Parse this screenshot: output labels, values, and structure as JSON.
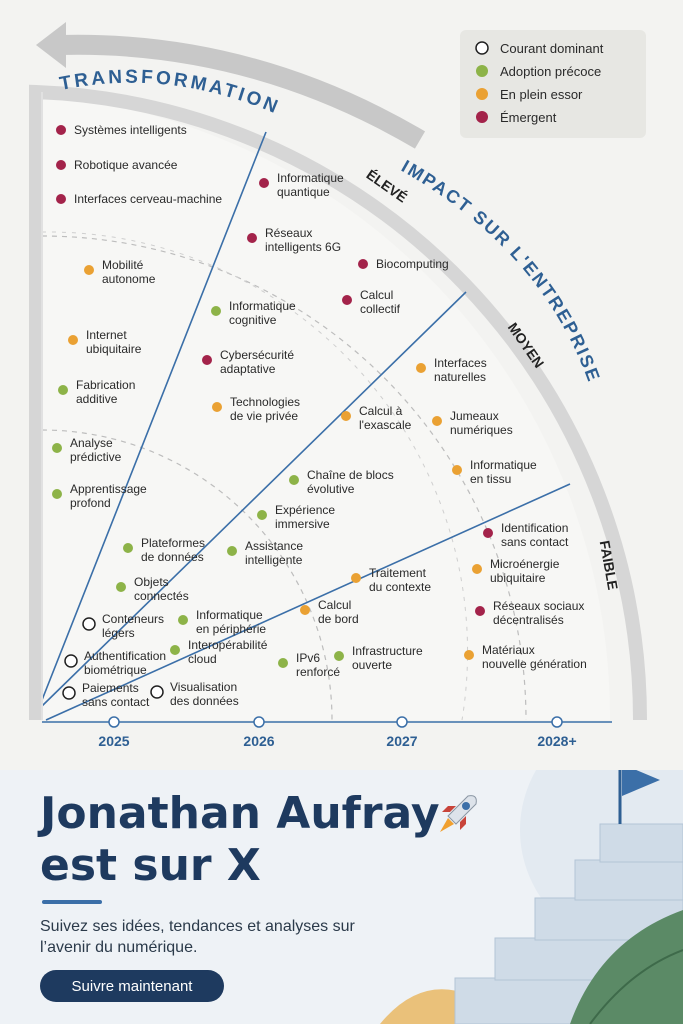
{
  "legend": [
    {
      "label": "Courant dominant",
      "color": "#ffffff",
      "stroke": "#222222"
    },
    {
      "label": "Adoption précoce",
      "color": "#8db348",
      "stroke": "none"
    },
    {
      "label": "En plein essor",
      "color": "#eaa133",
      "stroke": "none"
    },
    {
      "label": "Émergent",
      "color": "#a3234a",
      "stroke": "none"
    }
  ],
  "arc_labels": {
    "transformation": "TRANSFORMATION",
    "impact": "IMPACT SUR L'ENTREPRISE"
  },
  "levels": {
    "high": "ÉLEVÉ",
    "mid": "MOYEN",
    "low": "FAIBLE"
  },
  "years": [
    "2025",
    "2026",
    "2027",
    "2028+"
  ],
  "items": [
    {
      "lines": [
        "Systèmes intelligents"
      ],
      "status": "Émergent"
    },
    {
      "lines": [
        "Robotique avancée"
      ],
      "status": "Émergent"
    },
    {
      "lines": [
        "Interfaces cerveau-machine"
      ],
      "status": "Émergent"
    },
    {
      "lines": [
        "Informatique",
        "quantique"
      ],
      "status": "Émergent"
    },
    {
      "lines": [
        "Réseaux",
        "intelligents 6G"
      ],
      "status": "Émergent"
    },
    {
      "lines": [
        "Biocomputing"
      ],
      "status": "Émergent"
    },
    {
      "lines": [
        "Calcul",
        "collectif"
      ],
      "status": "Émergent"
    },
    {
      "lines": [
        "Mobilité",
        "autonome"
      ],
      "status": "En plein essor"
    },
    {
      "lines": [
        "Informatique",
        "cognitive"
      ],
      "status": "Adoption précoce"
    },
    {
      "lines": [
        "Internet",
        "ubiquitaire"
      ],
      "status": "En plein essor"
    },
    {
      "lines": [
        "Cybersécurité",
        "adaptative"
      ],
      "status": "Émergent"
    },
    {
      "lines": [
        "Interfaces",
        "naturelles"
      ],
      "status": "En plein essor"
    },
    {
      "lines": [
        "Fabrication",
        "additive"
      ],
      "status": "Adoption précoce"
    },
    {
      "lines": [
        "Technologies",
        "de vie privée"
      ],
      "status": "En plein essor"
    },
    {
      "lines": [
        "Calcul à",
        "l'exascale"
      ],
      "status": "En plein essor"
    },
    {
      "lines": [
        "Jumeaux",
        "numériques"
      ],
      "status": "En plein essor"
    },
    {
      "lines": [
        "Analyse",
        "prédictive"
      ],
      "status": "Adoption précoce"
    },
    {
      "lines": [
        "Informatique",
        "en tissu"
      ],
      "status": "En plein essor"
    },
    {
      "lines": [
        "Chaîne de blocs",
        "évolutive"
      ],
      "status": "Adoption précoce"
    },
    {
      "lines": [
        "Apprentissage",
        "profond"
      ],
      "status": "Adoption précoce"
    },
    {
      "lines": [
        "Expérience",
        "immersive"
      ],
      "status": "Adoption précoce"
    },
    {
      "lines": [
        "Identification",
        "sans contact"
      ],
      "status": "Émergent"
    },
    {
      "lines": [
        "Plateformes",
        "de données"
      ],
      "status": "Adoption précoce"
    },
    {
      "lines": [
        "Assistance",
        "intelligente"
      ],
      "status": "Adoption précoce"
    },
    {
      "lines": [
        "Microénergie",
        "ubiquitaire"
      ],
      "status": "En plein essor"
    },
    {
      "lines": [
        "Objets",
        "connectés"
      ],
      "status": "Adoption précoce"
    },
    {
      "lines": [
        "Traitement",
        "du contexte"
      ],
      "status": "En plein essor"
    },
    {
      "lines": [
        "Réseaux sociaux",
        "décentralisés"
      ],
      "status": "Émergent"
    },
    {
      "lines": [
        "Conteneurs",
        "légers"
      ],
      "status": "Courant dominant"
    },
    {
      "lines": [
        "Informatique",
        "en périphérie"
      ],
      "status": "Adoption précoce"
    },
    {
      "lines": [
        "Calcul",
        "de bord"
      ],
      "status": "En plein essor"
    },
    {
      "lines": [
        "Interopérabilité",
        "cloud"
      ],
      "status": "Adoption précoce"
    },
    {
      "lines": [
        "Authentification",
        "biométrique"
      ],
      "status": "Courant dominant"
    },
    {
      "lines": [
        "IPv6",
        "renforcé"
      ],
      "status": "Adoption précoce"
    },
    {
      "lines": [
        "Infrastructure",
        "ouverte"
      ],
      "status": "Adoption précoce"
    },
    {
      "lines": [
        "Matériaux",
        "nouvelle génération"
      ],
      "status": "En plein essor"
    },
    {
      "lines": [
        "Paiements",
        "sans contact"
      ],
      "status": "Courant dominant"
    },
    {
      "lines": [
        "Visualisation",
        "des données"
      ],
      "status": "Courant dominant"
    }
  ],
  "promo": {
    "title_line1": "Jonathan Aufray",
    "title_line2": "est sur X",
    "subtitle": "Suivez ses idées, tendances et analyses sur l’avenir du numérique.",
    "button": "Suivre maintenant"
  }
}
